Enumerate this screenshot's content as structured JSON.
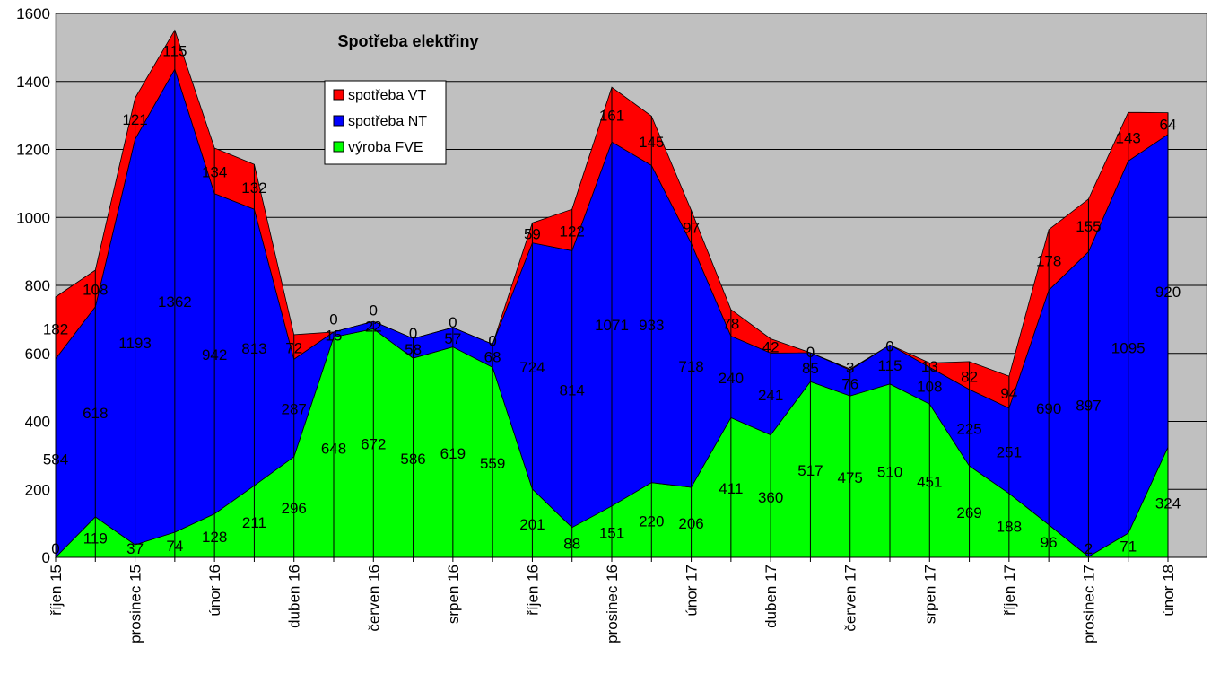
{
  "chart_data": {
    "type": "area",
    "stacked": true,
    "title": "Spotřeba elektřiny",
    "xlabel": "",
    "ylabel": "",
    "ylim": [
      0,
      1600
    ],
    "yticks": [
      0,
      200,
      400,
      600,
      800,
      1000,
      1200,
      1400,
      1600
    ],
    "grid": true,
    "legend_position": "top-left",
    "categories": [
      "říjen 15",
      "",
      "prosinec 15",
      "",
      "únor 16",
      "",
      "duben 16",
      "",
      "červen 16",
      "",
      "srpen 16",
      "",
      "říjen 16",
      "",
      "prosinec 16",
      "",
      "únor 17",
      "",
      "duben 17",
      "",
      "červen 17",
      "",
      "srpen 17",
      "",
      "říjen 17",
      "",
      "prosinec 17",
      "",
      "únor 18"
    ],
    "series": [
      {
        "name": "výroba FVE",
        "color": "#00FF00",
        "values": [
          0,
          119,
          37,
          74,
          128,
          211,
          296,
          648,
          672,
          586,
          619,
          559,
          201,
          88,
          151,
          220,
          206,
          411,
          360,
          517,
          475,
          510,
          451,
          269,
          188,
          96,
          2,
          71,
          324
        ]
      },
      {
        "name": "spotřeba NT",
        "color": "#0000FF",
        "values": [
          584,
          618,
          1193,
          1362,
          942,
          813,
          287,
          15,
          22,
          58,
          57,
          68,
          724,
          814,
          1071,
          933,
          718,
          240,
          241,
          85,
          76,
          115,
          108,
          225,
          251,
          690,
          897,
          1095,
          920
        ]
      },
      {
        "name": "spotřeba VT",
        "color": "#FF0000",
        "values": [
          182,
          108,
          121,
          115,
          134,
          132,
          72,
          0,
          0,
          0,
          0,
          0,
          59,
          122,
          161,
          145,
          97,
          78,
          42,
          0,
          3,
          0,
          13,
          82,
          94,
          178,
          155,
          143,
          64
        ]
      }
    ],
    "legend_order": [
      "spotřeba VT",
      "spotřeba NT",
      "výroba FVE"
    ],
    "plot_background": "#C0C0C0"
  }
}
